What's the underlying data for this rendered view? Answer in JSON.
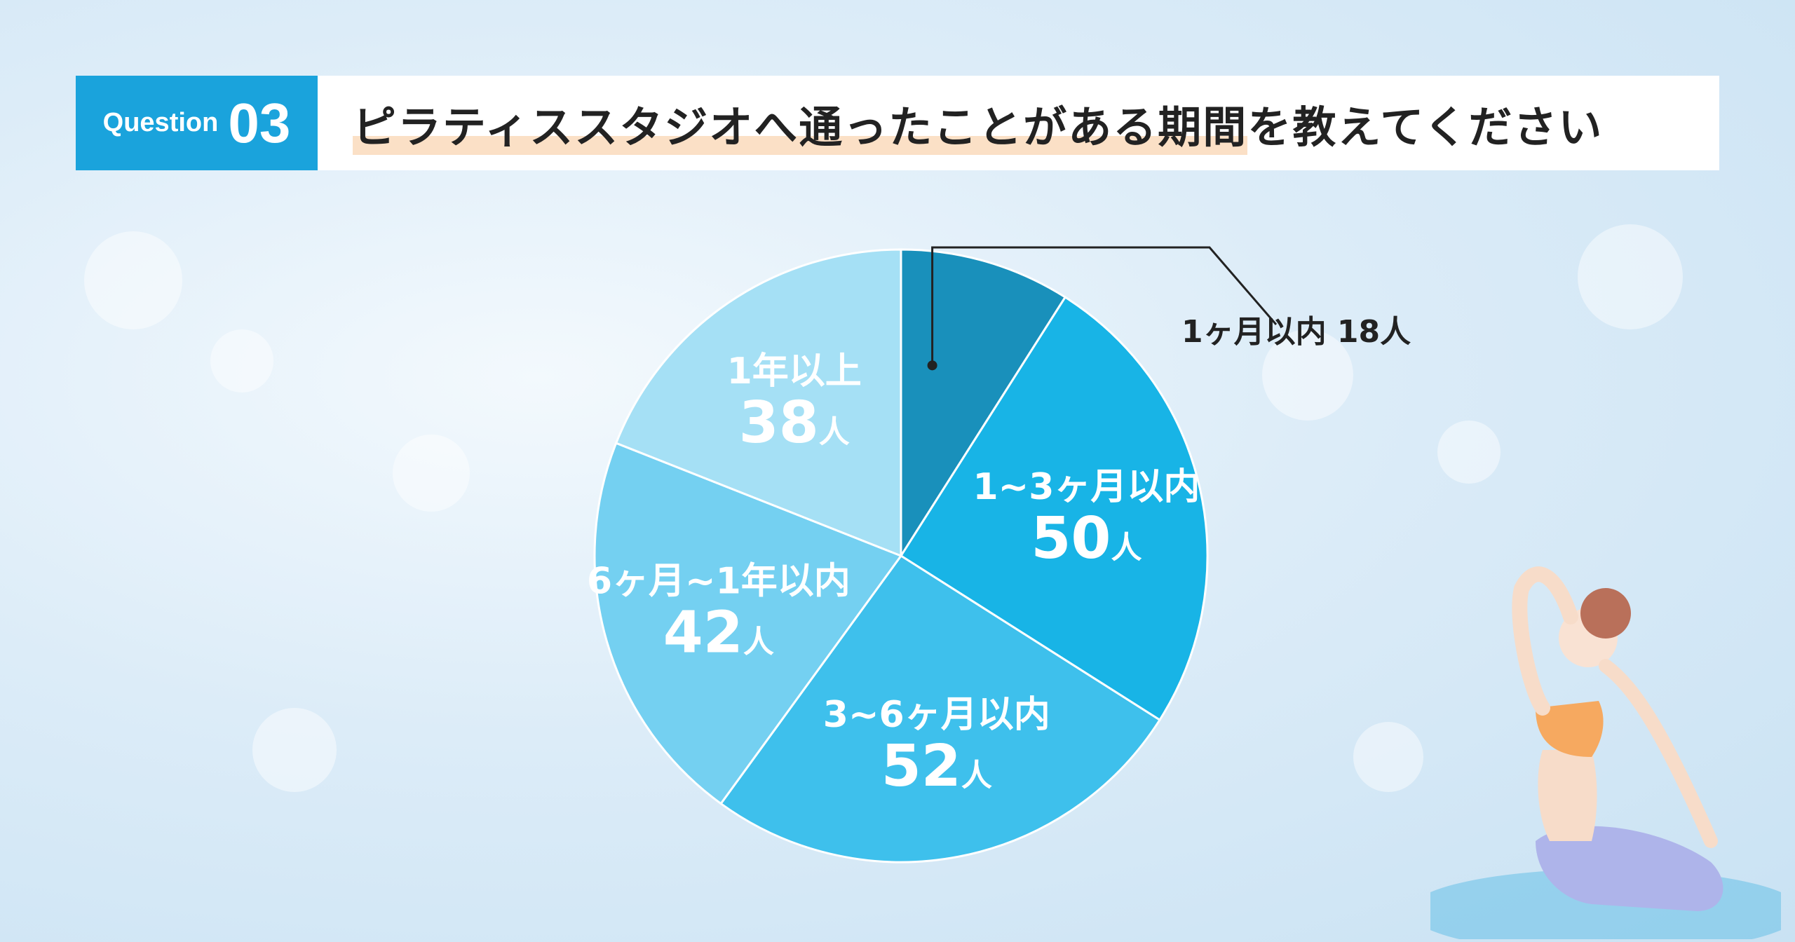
{
  "header": {
    "question_word": "Question",
    "question_number": "03",
    "title_part1": "ピラティススタジオへ",
    "title_part2": "通ったことがある",
    "title_part3": "期間",
    "title_part4": "を教えてください"
  },
  "colors": {
    "accent": "#1aa3dc",
    "title_highlight": "#fbe0c6"
  },
  "chart_data": {
    "type": "pie",
    "unit": "人",
    "slices": [
      {
        "label": "1ヶ月以内",
        "value": 18,
        "color": "#1990bb",
        "display": "1ヶ月以内 18人"
      },
      {
        "label": "1~3ヶ月以内",
        "value": 50,
        "color": "#18b4e6"
      },
      {
        "label": "3~6ヶ月以内",
        "value": 52,
        "color": "#3ec0ec"
      },
      {
        "label": "6ヶ月~1年以内",
        "value": 42,
        "color": "#74d0f1"
      },
      {
        "label": "1年以上",
        "value": 38,
        "color": "#a5e0f5"
      }
    ],
    "start_angle": "12 o'clock",
    "direction": "clockwise"
  }
}
